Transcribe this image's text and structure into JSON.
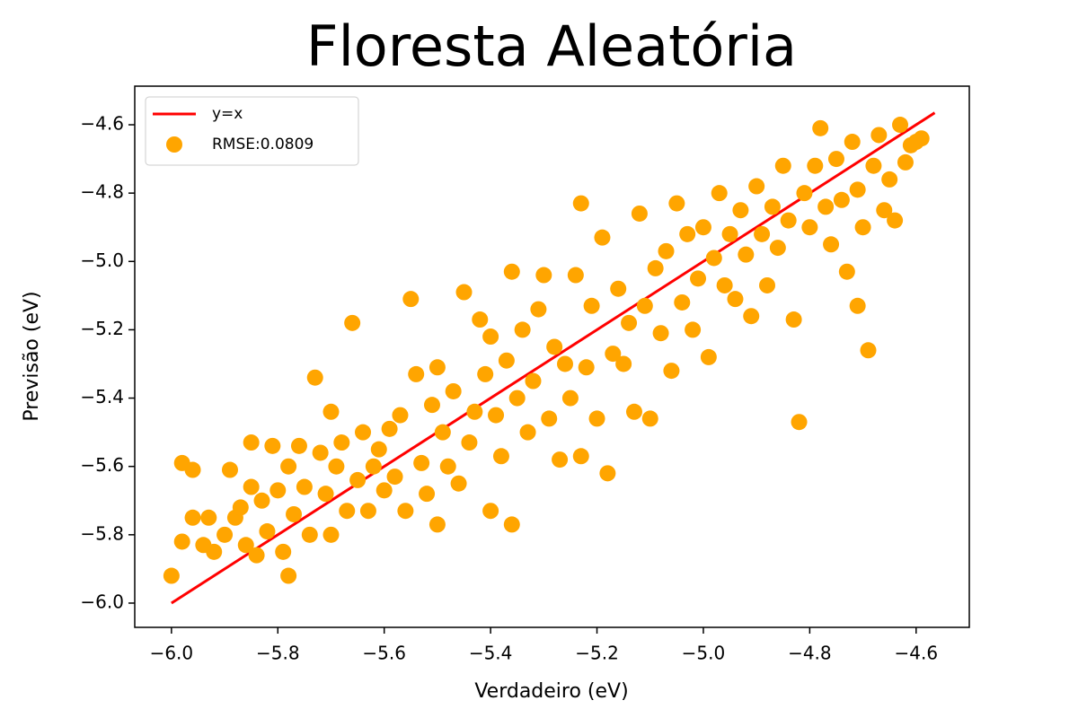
{
  "chart_data": {
    "type": "scatter",
    "title": "Floresta Aleatória",
    "xlabel": "Verdadeiro (eV)",
    "ylabel": "Previsão (eV)",
    "xlim": [
      -6.069,
      -4.5
    ],
    "ylim": [
      -6.071,
      -4.487
    ],
    "xticks": [
      {
        "value": -6.0,
        "label": "−6.0"
      },
      {
        "value": -5.8,
        "label": "−5.8"
      },
      {
        "value": -5.6,
        "label": "−5.6"
      },
      {
        "value": -5.4,
        "label": "−5.4"
      },
      {
        "value": -5.2,
        "label": "−5.2"
      },
      {
        "value": -5.0,
        "label": "−5.0"
      },
      {
        "value": -4.8,
        "label": "−4.8"
      },
      {
        "value": -4.6,
        "label": "−4.6"
      }
    ],
    "yticks": [
      {
        "value": -6.0,
        "label": "−6.0"
      },
      {
        "value": -5.8,
        "label": "−5.8"
      },
      {
        "value": -5.6,
        "label": "−5.6"
      },
      {
        "value": -5.4,
        "label": "−5.4"
      },
      {
        "value": -5.2,
        "label": "−5.2"
      },
      {
        "value": -5.0,
        "label": "−5.0"
      },
      {
        "value": -4.8,
        "label": "−4.8"
      },
      {
        "value": -4.6,
        "label": "−4.6"
      }
    ],
    "grid": false,
    "legend": "upper left",
    "series": [
      {
        "name": "y=x",
        "type": "line",
        "color": "#ff0000",
        "x": [
          -6.0,
          -4.565
        ],
        "values": [
          -6.0,
          -4.565
        ]
      },
      {
        "name": "RMSE:0.0809",
        "type": "scatter",
        "color": "#ffa500",
        "x": [
          -6.0,
          -5.98,
          -5.98,
          -5.96,
          -5.96,
          -5.94,
          -5.93,
          -5.92,
          -5.9,
          -5.89,
          -5.88,
          -5.87,
          -5.86,
          -5.85,
          -5.85,
          -5.84,
          -5.83,
          -5.82,
          -5.81,
          -5.8,
          -5.79,
          -5.78,
          -5.78,
          -5.77,
          -5.76,
          -5.75,
          -5.74,
          -5.73,
          -5.72,
          -5.71,
          -5.7,
          -5.7,
          -5.69,
          -5.68,
          -5.67,
          -5.66,
          -5.65,
          -5.64,
          -5.63,
          -5.62,
          -5.61,
          -5.6,
          -5.59,
          -5.58,
          -5.57,
          -5.56,
          -5.55,
          -5.54,
          -5.53,
          -5.52,
          -5.51,
          -5.5,
          -5.5,
          -5.49,
          -5.48,
          -5.47,
          -5.46,
          -5.45,
          -5.44,
          -5.43,
          -5.42,
          -5.41,
          -5.4,
          -5.4,
          -5.39,
          -5.38,
          -5.37,
          -5.36,
          -5.36,
          -5.35,
          -5.34,
          -5.33,
          -5.32,
          -5.31,
          -5.3,
          -5.29,
          -5.28,
          -5.27,
          -5.26,
          -5.25,
          -5.24,
          -5.23,
          -5.23,
          -5.22,
          -5.21,
          -5.2,
          -5.19,
          -5.18,
          -5.17,
          -5.16,
          -5.15,
          -5.14,
          -5.13,
          -5.12,
          -5.11,
          -5.1,
          -5.09,
          -5.08,
          -5.07,
          -5.06,
          -5.05,
          -5.04,
          -5.03,
          -5.02,
          -5.01,
          -5.0,
          -4.99,
          -4.98,
          -4.97,
          -4.96,
          -4.95,
          -4.94,
          -4.93,
          -4.92,
          -4.91,
          -4.9,
          -4.89,
          -4.88,
          -4.87,
          -4.86,
          -4.85,
          -4.84,
          -4.83,
          -4.82,
          -4.81,
          -4.8,
          -4.79,
          -4.78,
          -4.77,
          -4.76,
          -4.75,
          -4.74,
          -4.73,
          -4.72,
          -4.71,
          -4.7,
          -4.69,
          -4.68,
          -4.67,
          -4.66,
          -4.65,
          -4.64,
          -4.63,
          -4.62,
          -4.61,
          -4.6,
          -4.59,
          -4.71
        ],
        "values": [
          -5.92,
          -5.82,
          -5.59,
          -5.61,
          -5.75,
          -5.83,
          -5.75,
          -5.85,
          -5.8,
          -5.61,
          -5.75,
          -5.72,
          -5.83,
          -5.66,
          -5.53,
          -5.86,
          -5.7,
          -5.79,
          -5.54,
          -5.67,
          -5.85,
          -5.92,
          -5.6,
          -5.74,
          -5.54,
          -5.66,
          -5.8,
          -5.34,
          -5.56,
          -5.68,
          -5.8,
          -5.44,
          -5.6,
          -5.53,
          -5.73,
          -5.18,
          -5.64,
          -5.5,
          -5.73,
          -5.6,
          -5.55,
          -5.67,
          -5.49,
          -5.63,
          -5.45,
          -5.73,
          -5.11,
          -5.33,
          -5.59,
          -5.68,
          -5.42,
          -5.77,
          -5.31,
          -5.5,
          -5.6,
          -5.38,
          -5.65,
          -5.09,
          -5.53,
          -5.44,
          -5.17,
          -5.33,
          -5.73,
          -5.22,
          -5.45,
          -5.57,
          -5.29,
          -5.03,
          -5.77,
          -5.4,
          -5.2,
          -5.5,
          -5.35,
          -5.14,
          -5.04,
          -5.46,
          -5.25,
          -5.58,
          -5.3,
          -5.4,
          -5.04,
          -4.83,
          -5.57,
          -5.31,
          -5.13,
          -5.46,
          -4.93,
          -5.62,
          -5.27,
          -5.08,
          -5.3,
          -5.18,
          -5.44,
          -4.86,
          -5.13,
          -5.46,
          -5.02,
          -5.21,
          -4.97,
          -5.32,
          -4.83,
          -5.12,
          -4.92,
          -5.2,
          -5.05,
          -4.9,
          -5.28,
          -4.99,
          -4.8,
          -5.07,
          -4.92,
          -5.11,
          -4.85,
          -4.98,
          -5.16,
          -4.78,
          -4.92,
          -5.07,
          -4.84,
          -4.96,
          -4.72,
          -4.88,
          -5.17,
          -5.47,
          -4.8,
          -4.9,
          -4.72,
          -4.61,
          -4.84,
          -4.95,
          -4.7,
          -4.82,
          -5.03,
          -4.65,
          -4.79,
          -4.9,
          -5.26,
          -4.72,
          -4.63,
          -4.85,
          -4.76,
          -4.88,
          -4.6,
          -4.71,
          -4.66,
          -4.65,
          -4.64,
          -5.13
        ]
      }
    ]
  }
}
